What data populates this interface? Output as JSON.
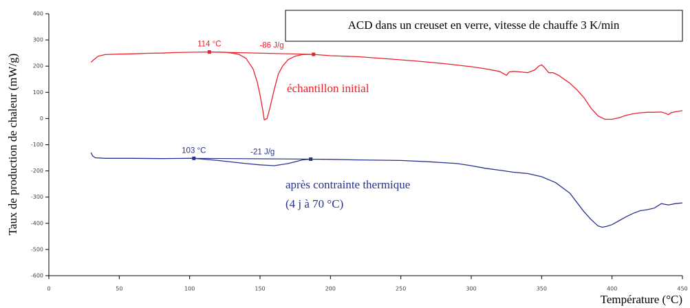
{
  "chart_data": {
    "type": "line",
    "title": "ACD dans un creuset en verre, vitesse de chauffe 3 K/min",
    "xlabel": "Température (°C)",
    "ylabel": "Taux de production de chaleur (mW/g)",
    "xlim": [
      0,
      450
    ],
    "xticks": [
      0,
      50,
      100,
      150,
      200,
      250,
      300,
      350,
      400,
      450
    ],
    "ylim": [
      -600,
      400
    ],
    "yticks": [
      -600,
      -500,
      -400,
      -300,
      -200,
      -100,
      0,
      100,
      200,
      300,
      400
    ],
    "series": [
      {
        "name": "échantillon initial",
        "color": "#e8202a",
        "x": [
          30,
          32,
          35,
          40,
          50,
          60,
          70,
          80,
          90,
          100,
          114,
          125,
          130,
          135,
          140,
          145,
          148,
          150,
          152,
          153,
          155,
          157,
          160,
          163,
          166,
          170,
          175,
          180,
          188,
          200,
          220,
          240,
          260,
          280,
          300,
          310,
          320,
          325,
          327,
          330,
          335,
          340,
          345,
          348,
          350,
          352,
          355,
          358,
          362,
          366,
          370,
          375,
          380,
          385,
          390,
          395,
          400,
          405,
          410,
          415,
          420,
          425,
          430,
          435,
          438,
          440,
          442,
          445,
          450
        ],
        "values": [
          215,
          225,
          238,
          244,
          246,
          247,
          249,
          250,
          252,
          253,
          254,
          253,
          250,
          245,
          230,
          190,
          140,
          90,
          30,
          -5,
          0,
          40,
          110,
          170,
          200,
          225,
          238,
          244,
          245,
          240,
          236,
          228,
          220,
          210,
          198,
          190,
          180,
          165,
          178,
          180,
          178,
          175,
          185,
          200,
          205,
          195,
          175,
          175,
          165,
          150,
          135,
          110,
          80,
          40,
          10,
          -3,
          -3,
          3,
          12,
          18,
          22,
          24,
          24,
          25,
          20,
          15,
          22,
          26,
          30
        ],
        "marker_x": [
          114,
          188
        ],
        "marker_y": [
          254,
          245
        ],
        "onset_label": "114 °C",
        "enthalpy_label": "-86 J/g"
      },
      {
        "name": "après contrainte thermique",
        "name_line2": "(4 j à 70 °C)",
        "color": "#27318b",
        "x": [
          30,
          31,
          33,
          40,
          60,
          80,
          100,
          103,
          120,
          140,
          150,
          160,
          170,
          180,
          186,
          200,
          220,
          250,
          270,
          290,
          300,
          310,
          320,
          330,
          340,
          350,
          360,
          370,
          375,
          380,
          385,
          390,
          393,
          396,
          400,
          405,
          410,
          415,
          420,
          425,
          430,
          435,
          440,
          445,
          450
        ],
        "values": [
          -130,
          -142,
          -150,
          -152,
          -152,
          -153,
          -152,
          -152,
          -160,
          -172,
          -177,
          -180,
          -172,
          -158,
          -155,
          -156,
          -158,
          -160,
          -165,
          -172,
          -180,
          -190,
          -197,
          -205,
          -210,
          -222,
          -245,
          -285,
          -320,
          -355,
          -385,
          -410,
          -415,
          -412,
          -405,
          -390,
          -375,
          -362,
          -352,
          -348,
          -342,
          -325,
          -330,
          -325,
          -322
        ],
        "marker_x": [
          103,
          186
        ],
        "marker_y": [
          -152,
          -155
        ],
        "onset_label": "103 °C",
        "enthalpy_label": "-21 J/g"
      }
    ]
  }
}
